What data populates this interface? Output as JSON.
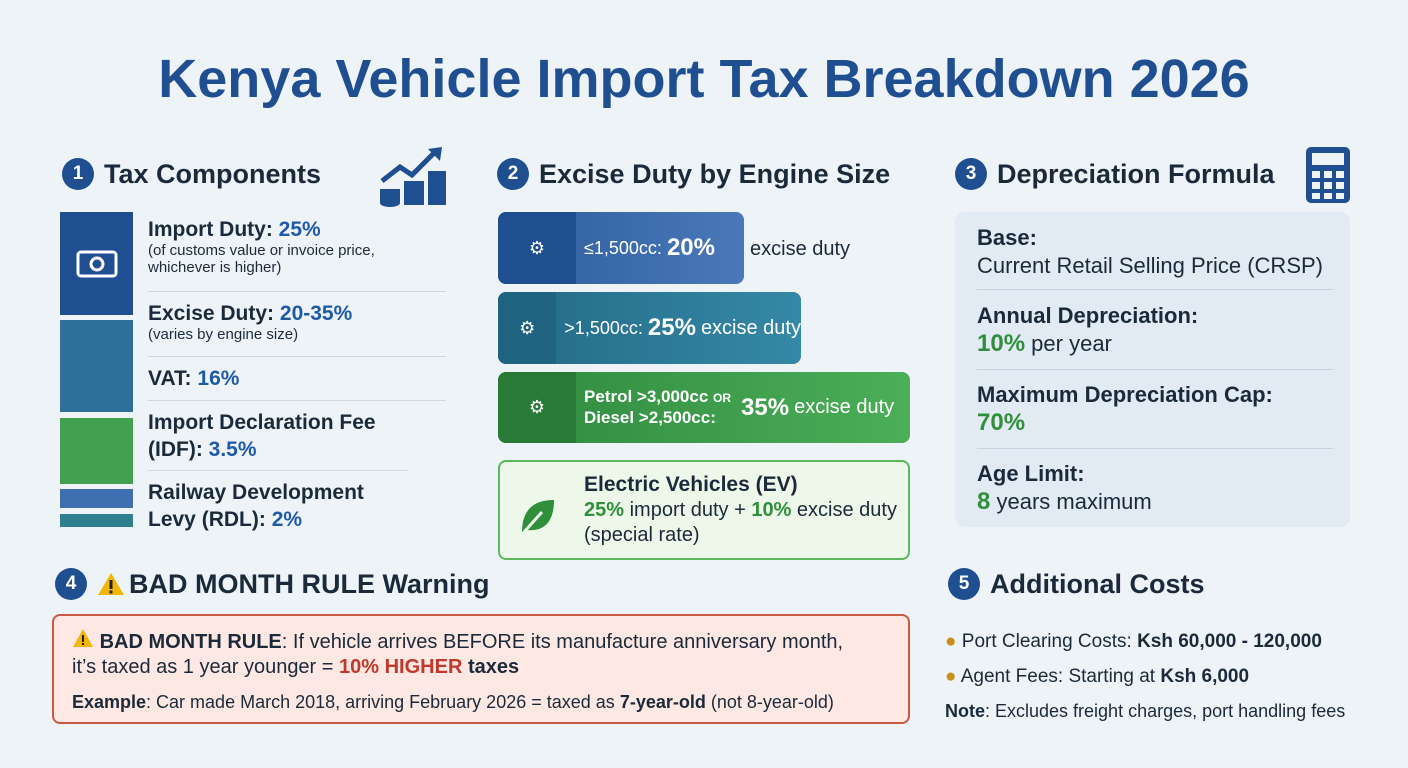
{
  "title": "Kenya Vehicle Import Tax Breakdown 2026",
  "tax_components": {
    "number": "1",
    "heading": "Tax Components",
    "items": [
      {
        "label": "Import Duty:",
        "value": "25%",
        "note": "(of customs value or invoice price, whichever is higher)"
      },
      {
        "label": "Excise Duty:",
        "value": "20-35%",
        "note": "(varies by engine size)"
      },
      {
        "label": "VAT:",
        "value": "16%"
      },
      {
        "label": "Import Declaration Fee (IDF):",
        "value": "3.5%"
      },
      {
        "label": "Railway Development Levy (RDL):",
        "value": "2%"
      }
    ]
  },
  "excise": {
    "number": "2",
    "heading": "Excise Duty by Engine Size",
    "bands": [
      {
        "label": "≤1,500cc:",
        "rate": "20%",
        "suffix": "excise duty"
      },
      {
        "label": ">1,500cc:",
        "rate": "25%",
        "suffix": "excise duty"
      },
      {
        "label": "Petrol >3,000cc",
        "or_text": "OR",
        "label2": "Diesel >2,500cc:",
        "rate": "35%",
        "suffix": "excise duty"
      }
    ],
    "ev": {
      "heading": "Electric Vehicles (EV)",
      "import_rate": "25%",
      "import_text": "import duty +",
      "excise_rate": "10%",
      "excise_text": "excise duty (special rate)"
    }
  },
  "depreciation": {
    "number": "3",
    "heading": "Depreciation Formula",
    "rows": [
      {
        "label": "Base:",
        "text": "Current Retail Selling Price (CRSP)"
      },
      {
        "label": "Annual Depreciation:",
        "value": "10%",
        "text": "per year"
      },
      {
        "label": "Maximum Depreciation Cap:",
        "value": "70%"
      },
      {
        "label": "Age Limit:",
        "value": "8",
        "text": "years maximum"
      }
    ]
  },
  "bad_month": {
    "number": "4",
    "heading": "BAD MONTH RULE Warning",
    "rule_label": "BAD MONTH RULE",
    "rule_text": ": If vehicle arrives BEFORE its manufacture anniversary month, it’s taxed as 1 year younger =",
    "highlight": "10% HIGHER",
    "highlight_suffix": "taxes",
    "example_label": "Example",
    "example_text": ": Car made March 2018, arriving February 2026 = taxed as",
    "example_bold": "7-year-old",
    "example_end": "(not 8-year-old)"
  },
  "additional": {
    "number": "5",
    "heading": "Additional Costs",
    "items": [
      {
        "label": "Port Clearing Costs:",
        "value": "Ksh 60,000 - 120,000"
      },
      {
        "label": "Agent Fees: Starting at",
        "value": "Ksh 6,000"
      }
    ],
    "note_label": "Note",
    "note_text": ": Excludes freight charges, port handling fees"
  }
}
